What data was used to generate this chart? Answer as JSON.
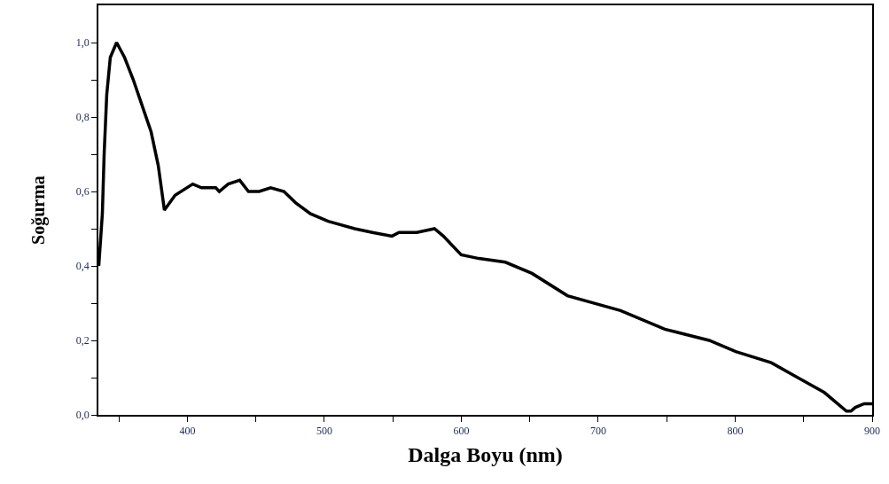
{
  "chart_data": {
    "type": "line",
    "xlabel": "Dalga Boyu (nm)",
    "ylabel": "Soğurma",
    "xlim": [
      335,
      900
    ],
    "ylim": [
      0,
      1.1
    ],
    "xticks": [
      {
        "value": 350,
        "label": null
      },
      400,
      {
        "value": 450,
        "label": null
      },
      500,
      {
        "value": 550,
        "label": null
      },
      600,
      {
        "value": 650,
        "label": null
      },
      700,
      {
        "value": 750,
        "label": null
      },
      800,
      {
        "value": 850,
        "label": null
      },
      900
    ],
    "yticks": [
      {
        "value": 0,
        "label": "0,0"
      },
      {
        "value": 0.1,
        "label": null
      },
      {
        "value": 0.2,
        "label": "0,2"
      },
      {
        "value": 0.3,
        "label": null
      },
      {
        "value": 0.4,
        "label": "0,4"
      },
      {
        "value": 0.5,
        "label": null
      },
      {
        "value": 0.6,
        "label": "0,6"
      },
      {
        "value": 0.7,
        "label": null
      },
      {
        "value": 0.8,
        "label": "0,8"
      },
      {
        "value": 0.9,
        "label": null
      },
      {
        "value": 1.0,
        "label": "1,0"
      }
    ],
    "legend": false,
    "marker": "none",
    "line_style": "solid",
    "x": [
      335.3,
      337.9,
      339.2,
      341.1,
      343.7,
      348.3,
      354.1,
      360.5,
      367,
      373.5,
      378.7,
      383.2,
      391,
      403.9,
      410.3,
      420.7,
      423.3,
      429.8,
      438.2,
      444.6,
      452.4,
      460.8,
      470.5,
      478.9,
      489.9,
      502.8,
      522.2,
      535.1,
      549.4,
      554.5,
      567.5,
      580.4,
      586.9,
      599.9,
      612.8,
      632.2,
      651.6,
      677.5,
      716.3,
      748.6,
      781,
      800.4,
      826.3,
      845.7,
      865.1,
      881.2,
      884.5,
      887.7,
      894.2,
      900
    ],
    "series": [
      {
        "color": "#000000",
        "values": [
          0.4,
          0.54,
          0.7,
          0.86,
          0.96,
          1.0,
          0.96,
          0.9,
          0.83,
          0.76,
          0.67,
          0.55,
          0.59,
          0.62,
          0.61,
          0.61,
          0.6,
          0.62,
          0.63,
          0.6,
          0.6,
          0.61,
          0.6,
          0.57,
          0.54,
          0.52,
          0.5,
          0.49,
          0.48,
          0.49,
          0.49,
          0.5,
          0.48,
          0.43,
          0.42,
          0.41,
          0.38,
          0.32,
          0.28,
          0.23,
          0.2,
          0.17,
          0.14,
          0.1,
          0.06,
          0.01,
          0.01,
          0.02,
          0.03,
          0.03
        ]
      }
    ]
  }
}
